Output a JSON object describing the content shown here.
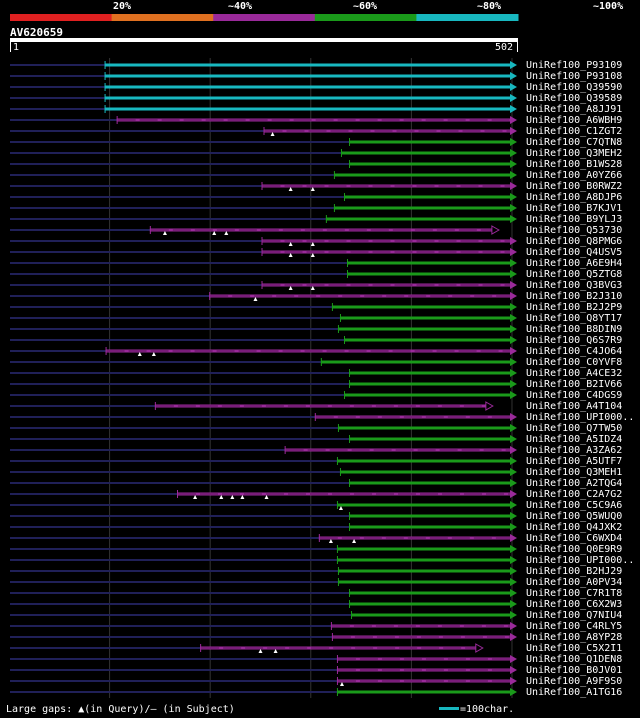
{
  "header": {
    "legend_labels": [
      "20%",
      "~40%",
      "~60%",
      "~80%",
      "~100%"
    ],
    "legend_colors": [
      "#e02020",
      "#e07020",
      "#9a2a9a",
      "#1a9a1a",
      "#18b8c0"
    ],
    "query_id": "AV620659",
    "scale_start": "1",
    "scale_end": "502"
  },
  "query_length": 502,
  "rows": [
    {
      "name": "UniRef100_P93109",
      "start": 95,
      "end": 502,
      "color": "#18b8c0",
      "gaps": [],
      "arrow": "closed"
    },
    {
      "name": "UniRef100_P93108",
      "start": 95,
      "end": 502,
      "color": "#18b8c0",
      "gaps": [],
      "arrow": "closed"
    },
    {
      "name": "UniRef100_Q39590",
      "start": 95,
      "end": 502,
      "color": "#18b8c0",
      "gaps": [],
      "arrow": "closed"
    },
    {
      "name": "UniRef100_Q39589",
      "start": 95,
      "end": 502,
      "color": "#18b8c0",
      "gaps": [],
      "arrow": "closed"
    },
    {
      "name": "UniRef100_A8JJ91",
      "start": 95,
      "end": 502,
      "color": "#18b8c0",
      "gaps": [],
      "arrow": "closed"
    },
    {
      "name": "UniRef100_A6WBH9",
      "start": 107,
      "end": 502,
      "color": "#9a2a9a",
      "gaps": [],
      "arrow": "closed"
    },
    {
      "name": "UniRef100_C1ZGT2",
      "start": 253,
      "end": 502,
      "color": "#9a2a9a",
      "gaps": [
        262
      ],
      "arrow": "closed"
    },
    {
      "name": "UniRef100_C7QTN8",
      "start": 338,
      "end": 502,
      "color": "#1a9a1a",
      "gaps": [],
      "arrow": "closed"
    },
    {
      "name": "UniRef100_Q3MEH2",
      "start": 330,
      "end": 502,
      "color": "#1a9a1a",
      "gaps": [],
      "arrow": "closed"
    },
    {
      "name": "UniRef100_B1WS28",
      "start": 338,
      "end": 502,
      "color": "#1a9a1a",
      "gaps": [],
      "arrow": "closed"
    },
    {
      "name": "UniRef100_A0YZ66",
      "start": 323,
      "end": 502,
      "color": "#1a9a1a",
      "gaps": [],
      "arrow": "closed"
    },
    {
      "name": "UniRef100_B0RWZ2",
      "start": 251,
      "end": 502,
      "color": "#9a2a9a",
      "gaps": [
        280,
        302
      ],
      "arrow": "closed"
    },
    {
      "name": "UniRef100_A8DJP6",
      "start": 333,
      "end": 502,
      "color": "#1a9a1a",
      "gaps": [],
      "arrow": "closed"
    },
    {
      "name": "UniRef100_B7KJV1",
      "start": 323,
      "end": 502,
      "color": "#1a9a1a",
      "gaps": [],
      "arrow": "closed"
    },
    {
      "name": "UniRef100_B9YLJ3",
      "start": 315,
      "end": 502,
      "color": "#1a9a1a",
      "gaps": [],
      "arrow": "closed"
    },
    {
      "name": "UniRef100_Q53730",
      "start": 140,
      "end": 484,
      "color": "#9a2a9a",
      "gaps": [
        155,
        204,
        216
      ],
      "arrow": "open"
    },
    {
      "name": "UniRef100_Q8PMG6",
      "start": 251,
      "end": 502,
      "color": "#9a2a9a",
      "gaps": [
        280,
        302
      ],
      "arrow": "closed"
    },
    {
      "name": "UniRef100_Q4USV5",
      "start": 251,
      "end": 502,
      "color": "#9a2a9a",
      "gaps": [
        280,
        302
      ],
      "arrow": "closed"
    },
    {
      "name": "UniRef100_A6E9H4",
      "start": 336,
      "end": 502,
      "color": "#1a9a1a",
      "gaps": [],
      "arrow": "closed"
    },
    {
      "name": "UniRef100_Q5ZTG8",
      "start": 336,
      "end": 502,
      "color": "#1a9a1a",
      "gaps": [],
      "arrow": "closed"
    },
    {
      "name": "UniRef100_Q3BVG3",
      "start": 251,
      "end": 502,
      "color": "#9a2a9a",
      "gaps": [
        280,
        302
      ],
      "arrow": "closed"
    },
    {
      "name": "UniRef100_B2J310",
      "start": 199,
      "end": 502,
      "color": "#9a2a9a",
      "gaps": [
        245
      ],
      "arrow": "closed"
    },
    {
      "name": "UniRef100_B2J2P9",
      "start": 321,
      "end": 502,
      "color": "#1a9a1a",
      "gaps": [],
      "arrow": "closed"
    },
    {
      "name": "UniRef100_Q8YT17",
      "start": 329,
      "end": 502,
      "color": "#1a9a1a",
      "gaps": [],
      "arrow": "closed"
    },
    {
      "name": "UniRef100_B8DIN9",
      "start": 327,
      "end": 502,
      "color": "#1a9a1a",
      "gaps": [],
      "arrow": "closed"
    },
    {
      "name": "UniRef100_Q6S7R9",
      "start": 333,
      "end": 502,
      "color": "#1a9a1a",
      "gaps": [],
      "arrow": "closed"
    },
    {
      "name": "UniRef100_C4JO64",
      "start": 96,
      "end": 502,
      "color": "#9a2a9a",
      "gaps": [
        130,
        144
      ],
      "arrow": "closed"
    },
    {
      "name": "UniRef100_C0YVF8",
      "start": 310,
      "end": 502,
      "color": "#1a9a1a",
      "gaps": [],
      "arrow": "closed"
    },
    {
      "name": "UniRef100_A4CE32",
      "start": 338,
      "end": 502,
      "color": "#1a9a1a",
      "gaps": [],
      "arrow": "closed"
    },
    {
      "name": "UniRef100_B2IV66",
      "start": 338,
      "end": 502,
      "color": "#1a9a1a",
      "gaps": [],
      "arrow": "closed"
    },
    {
      "name": "UniRef100_C4DGS9",
      "start": 333,
      "end": 502,
      "color": "#1a9a1a",
      "gaps": [],
      "arrow": "closed"
    },
    {
      "name": "UniRef100_A4T104",
      "start": 145,
      "end": 478,
      "color": "#9a2a9a",
      "gaps": [],
      "arrow": "open"
    },
    {
      "name": "UniRef100_UPI000..",
      "start": 304,
      "end": 502,
      "color": "#9a2a9a",
      "gaps": [],
      "arrow": "closed"
    },
    {
      "name": "UniRef100_Q7TW50",
      "start": 327,
      "end": 502,
      "color": "#1a9a1a",
      "gaps": [],
      "arrow": "closed"
    },
    {
      "name": "UniRef100_A5IDZ4",
      "start": 338,
      "end": 502,
      "color": "#1a9a1a",
      "gaps": [],
      "arrow": "closed"
    },
    {
      "name": "UniRef100_A3ZA62",
      "start": 274,
      "end": 502,
      "color": "#9a2a9a",
      "gaps": [],
      "arrow": "closed"
    },
    {
      "name": "UniRef100_A5UTF7",
      "start": 326,
      "end": 502,
      "color": "#1a9a1a",
      "gaps": [],
      "arrow": "closed"
    },
    {
      "name": "UniRef100_Q3MEH1",
      "start": 329,
      "end": 502,
      "color": "#1a9a1a",
      "gaps": [],
      "arrow": "closed"
    },
    {
      "name": "UniRef100_A2TQG4",
      "start": 338,
      "end": 502,
      "color": "#1a9a1a",
      "gaps": [],
      "arrow": "closed"
    },
    {
      "name": "UniRef100_C2A7G2",
      "start": 167,
      "end": 502,
      "color": "#9a2a9a",
      "gaps": [
        185,
        211,
        222,
        232,
        256
      ],
      "arrow": "closed"
    },
    {
      "name": "UniRef100_C5C9A6",
      "start": 326,
      "end": 502,
      "color": "#1a9a1a",
      "gaps": [
        330
      ],
      "arrow": "closed"
    },
    {
      "name": "UniRef100_Q5WUQ0",
      "start": 338,
      "end": 502,
      "color": "#1a9a1a",
      "gaps": [],
      "arrow": "closed"
    },
    {
      "name": "UniRef100_Q4JXK2",
      "start": 338,
      "end": 502,
      "color": "#1a9a1a",
      "gaps": [],
      "arrow": "closed"
    },
    {
      "name": "UniRef100_C6WXD4",
      "start": 308,
      "end": 502,
      "color": "#9a2a9a",
      "gaps": [
        320,
        343
      ],
      "arrow": "closed"
    },
    {
      "name": "UniRef100_Q0E9R9",
      "start": 326,
      "end": 502,
      "color": "#1a9a1a",
      "gaps": [],
      "arrow": "closed"
    },
    {
      "name": "UniRef100_UPI000..",
      "start": 326,
      "end": 502,
      "color": "#1a9a1a",
      "gaps": [],
      "arrow": "closed"
    },
    {
      "name": "UniRef100_B2HJ29",
      "start": 327,
      "end": 502,
      "color": "#1a9a1a",
      "gaps": [],
      "arrow": "closed"
    },
    {
      "name": "UniRef100_A0PV34",
      "start": 327,
      "end": 502,
      "color": "#1a9a1a",
      "gaps": [],
      "arrow": "closed"
    },
    {
      "name": "UniRef100_C7R1T8",
      "start": 338,
      "end": 502,
      "color": "#1a9a1a",
      "gaps": [],
      "arrow": "closed"
    },
    {
      "name": "UniRef100_C6X2W3",
      "start": 338,
      "end": 502,
      "color": "#1a9a1a",
      "gaps": [],
      "arrow": "closed"
    },
    {
      "name": "UniRef100_Q7NIU4",
      "start": 340,
      "end": 502,
      "color": "#1a9a1a",
      "gaps": [],
      "arrow": "closed"
    },
    {
      "name": "UniRef100_C4RLY5",
      "start": 320,
      "end": 502,
      "color": "#9a2a9a",
      "gaps": [],
      "arrow": "closed"
    },
    {
      "name": "UniRef100_A8YP28",
      "start": 321,
      "end": 502,
      "color": "#9a2a9a",
      "gaps": [],
      "arrow": "closed"
    },
    {
      "name": "UniRef100_C5X2I1",
      "start": 190,
      "end": 468,
      "color": "#9a2a9a",
      "gaps": [
        250,
        265
      ],
      "arrow": "open"
    },
    {
      "name": "UniRef100_Q1DEN8",
      "start": 326,
      "end": 502,
      "color": "#9a2a9a",
      "gaps": [],
      "arrow": "closed"
    },
    {
      "name": "UniRef100_B0JV01",
      "start": 326,
      "end": 502,
      "color": "#9a2a9a",
      "gaps": [],
      "arrow": "closed"
    },
    {
      "name": "UniRef100_A9F9S0",
      "start": 326,
      "end": 502,
      "color": "#9a2a9a",
      "gaps": [
        331
      ],
      "arrow": "closed"
    },
    {
      "name": "UniRef100_A1TG16",
      "start": 326,
      "end": 502,
      "color": "#1a9a1a",
      "gaps": [],
      "arrow": "closed"
    }
  ],
  "footer": {
    "gaps_legend": "Large gaps: ▲(in Query)/– (in Subject)",
    "scale_legend": "=100char.",
    "scale_color": "#18b8c0"
  }
}
